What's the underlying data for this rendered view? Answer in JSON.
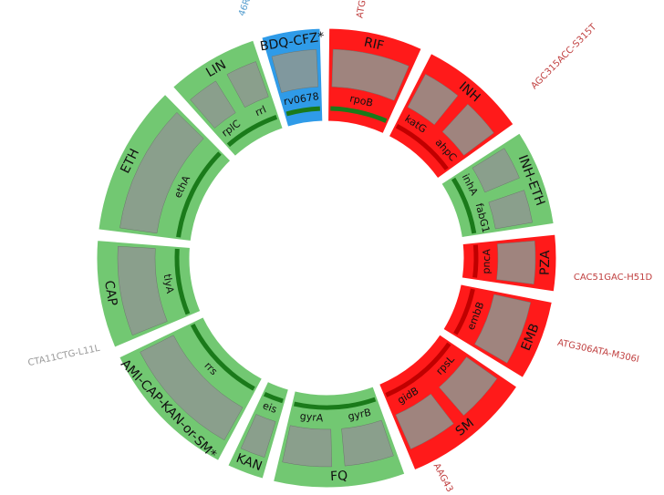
{
  "segments": [
    {
      "drug": "BDQ-CFZ*",
      "fill": "#2f9be8",
      "line": "#1a7a1a",
      "genes": [
        "rv0678"
      ]
    },
    {
      "drug": "RIF",
      "fill": "#ff1a1a",
      "line": "#1a7a1a",
      "genes": [
        "rpoB"
      ]
    },
    {
      "drug": "INH",
      "fill": "#ff1a1a",
      "line": "#c00000",
      "genes": [
        "katG",
        "ahpC"
      ]
    },
    {
      "drug": "INH-ETH",
      "fill": "#72c872",
      "line": "#1a7a1a",
      "genes": [
        "inhA",
        "fabG1"
      ]
    },
    {
      "drug": "PZA",
      "fill": "#ff1a1a",
      "line": "#c00000",
      "genes": [
        "pncA"
      ]
    },
    {
      "drug": "EMB",
      "fill": "#ff1a1a",
      "line": "#c00000",
      "genes": [
        "embB"
      ]
    },
    {
      "drug": "SM",
      "fill": "#ff1a1a",
      "line": "#c00000",
      "genes": [
        "rpsL",
        "gidB"
      ]
    },
    {
      "drug": "FQ",
      "fill": "#72c872",
      "line": "#1a7a1a",
      "genes": [
        "gyrB",
        "gyrA"
      ]
    },
    {
      "drug": "KAN",
      "fill": "#72c872",
      "line": "#1a7a1a",
      "genes": [
        "eis"
      ]
    },
    {
      "drug": "AMI-CAP-KAN-or-SM*",
      "fill": "#72c872",
      "line": "#1a7a1a",
      "genes": [
        "rrs"
      ]
    },
    {
      "drug": "CAP",
      "fill": "#72c872",
      "line": "#1a7a1a",
      "genes": [
        "tlyA"
      ]
    },
    {
      "drug": "ETH",
      "fill": "#72c872",
      "line": "#1a7a1a",
      "genes": [
        "ethA"
      ]
    },
    {
      "drug": "LIN",
      "fill": "#72c872",
      "line": "#1a7a1a",
      "genes": [
        "rplC",
        "rrl"
      ]
    }
  ],
  "annotations": [
    "AGC315ACC-S315T",
    "CAC51GAC-H51D",
    "ATG306ATA-M306I",
    "CTA11CTG-L11L",
    "46R",
    "ATG",
    "AAG43"
  ]
}
